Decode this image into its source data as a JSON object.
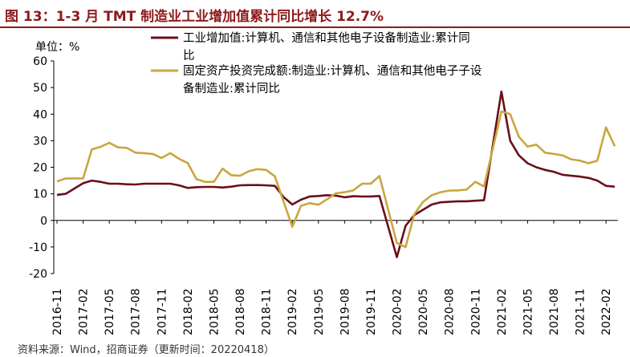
{
  "title": "图 13：1-3 月 TMT 制造业工业增加值累计同比增长 12.7%",
  "unit_label": "单位：%",
  "source": "资料来源：Wind，招商证券（更新时间：20220418）",
  "colors": {
    "series1": "#6b0f1a",
    "series2": "#c9a640",
    "title": "#8b1a1a"
  },
  "chart_data": {
    "type": "line",
    "title": "1-3 月 TMT 制造业工业增加值累计同比增长 12.7%",
    "ylabel": "单位：%",
    "ylim": [
      -20,
      60
    ],
    "yticks": [
      60,
      50,
      40,
      30,
      20,
      10,
      0,
      -10,
      -20
    ],
    "x": [
      "2016-11",
      "2016-12",
      "2017-01",
      "2017-02",
      "2017-03",
      "2017-04",
      "2017-05",
      "2017-06",
      "2017-07",
      "2017-08",
      "2017-09",
      "2017-10",
      "2017-11",
      "2017-12",
      "2018-01",
      "2018-02",
      "2018-03",
      "2018-04",
      "2018-05",
      "2018-06",
      "2018-07",
      "2018-08",
      "2018-09",
      "2018-10",
      "2018-11",
      "2018-12",
      "2019-01",
      "2019-02",
      "2019-03",
      "2019-04",
      "2019-05",
      "2019-06",
      "2019-07",
      "2019-08",
      "2019-09",
      "2019-10",
      "2019-11",
      "2019-12",
      "2020-01",
      "2020-02",
      "2020-03",
      "2020-04",
      "2020-05",
      "2020-06",
      "2020-07",
      "2020-08",
      "2020-09",
      "2020-10",
      "2020-11",
      "2020-12",
      "2021-01",
      "2021-02",
      "2021-03",
      "2021-04",
      "2021-05",
      "2021-06",
      "2021-07",
      "2021-08",
      "2021-09",
      "2021-10",
      "2021-11",
      "2021-12",
      "2022-01",
      "2022-02",
      "2022-03"
    ],
    "xtick_labels": [
      "2016-11",
      "2017-02",
      "2017-05",
      "2017-08",
      "2017-11",
      "2018-02",
      "2018-05",
      "2018-08",
      "2018-11",
      "2019-02",
      "2019-05",
      "2019-08",
      "2019-11",
      "2020-02",
      "2020-05",
      "2020-08",
      "2020-11",
      "2021-02",
      "2021-05",
      "2021-08",
      "2021-11",
      "2022-02"
    ],
    "series": [
      {
        "name": "工业增加值:计算机、通信和其他电子设备制造业:累计同比",
        "legend_lines": [
          "工业增加值:计算机、通信和其他电子设备制造业:累计同",
          "比"
        ],
        "values": [
          9.6,
          10,
          12,
          14,
          15,
          14.5,
          13.8,
          13.8,
          13.6,
          13.5,
          13.8,
          13.8,
          13.8,
          13.8,
          13.2,
          12.2,
          12.5,
          12.6,
          12.6,
          12.4,
          12.7,
          13.2,
          13.3,
          13.3,
          13.2,
          13,
          8.8,
          6,
          7.8,
          9,
          9.2,
          9.5,
          9.3,
          8.7,
          9.1,
          9,
          9,
          9.2,
          null,
          -13.8,
          -2,
          2,
          4,
          6,
          6.8,
          7,
          7.2,
          7.2,
          7.4,
          7.6,
          null,
          48.5,
          30,
          24.5,
          21.5,
          20,
          19,
          18.3,
          17.2,
          16.8,
          16.5,
          16,
          15,
          13,
          12.7
        ]
      },
      {
        "name": "固定资产投资完成额:制造业:计算机、通信和其他电子设备制造业:累计同比",
        "legend_lines": [
          "固定资产投资完成额:制造业:计算机、通信和其他电子子设",
          "备制造业:累计同比"
        ],
        "values": [
          14.7,
          15.8,
          15.8,
          15.8,
          26.7,
          27.7,
          29.2,
          27.5,
          27.3,
          25.5,
          25.3,
          25,
          23.5,
          25.3,
          23.2,
          21.6,
          15.5,
          14.5,
          14.5,
          19.5,
          17,
          16.8,
          18.5,
          19.3,
          19,
          16.6,
          null,
          -2.4,
          5.5,
          6.5,
          5.9,
          8,
          10.2,
          10.6,
          11.3,
          13.8,
          13.8,
          16.7,
          null,
          -8.5,
          -10,
          2.3,
          7,
          9.5,
          10.6,
          11.2,
          11.3,
          11.6,
          14.5,
          12.8,
          null,
          41,
          40,
          31.5,
          27.8,
          28.5,
          25.5,
          25,
          24.5,
          23,
          22.5,
          21.5,
          22.5,
          35,
          27.9
        ]
      }
    ]
  }
}
